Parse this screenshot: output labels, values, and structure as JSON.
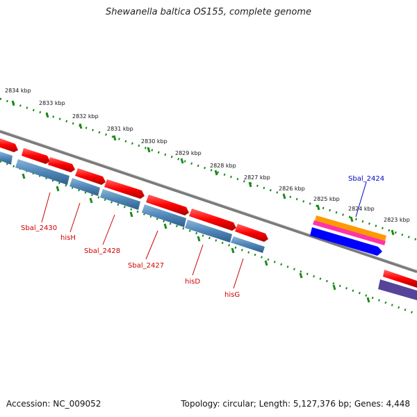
{
  "title": "Shewanella baltica OS155, complete genome",
  "footer": {
    "accession": "Accession: NC_009052",
    "stats": "Topology: circular; Length: 5,127,376 bp; Genes: 4,448"
  },
  "ruler": {
    "ticks": [
      {
        "label": "2834 kbp"
      },
      {
        "label": "2833 kbp"
      },
      {
        "label": "2832 kbp"
      },
      {
        "label": "2831 kbp"
      },
      {
        "label": "2830 kbp"
      },
      {
        "label": "2829 kbp"
      },
      {
        "label": "2828 kbp"
      },
      {
        "label": "2827 kbp"
      },
      {
        "label": "2826 kbp"
      },
      {
        "label": "2825 kbp"
      },
      {
        "label": "2824 kbp"
      },
      {
        "label": "2823 kbp"
      }
    ]
  },
  "gene_labels": [
    {
      "text": "Sbal_2430",
      "color": "#cc0000"
    },
    {
      "text": "hisH",
      "color": "#cc0000"
    },
    {
      "text": "Sbal_2428",
      "color": "#cc0000"
    },
    {
      "text": "Sbal_2427",
      "color": "#cc0000"
    },
    {
      "text": "hisD",
      "color": "#cc0000"
    },
    {
      "text": "hisG",
      "color": "#cc0000"
    },
    {
      "text": "Sbal_2424",
      "color": "#0000cc"
    }
  ],
  "colors": {
    "cds_red": "#ff0000",
    "gene_blue": "#4f86b8",
    "tick_green": "#1a8a1a",
    "backbone": "#888888",
    "orange": "#ff9900",
    "magenta": "#ff33aa",
    "blue": "#0000ff",
    "purple": "#554499"
  }
}
